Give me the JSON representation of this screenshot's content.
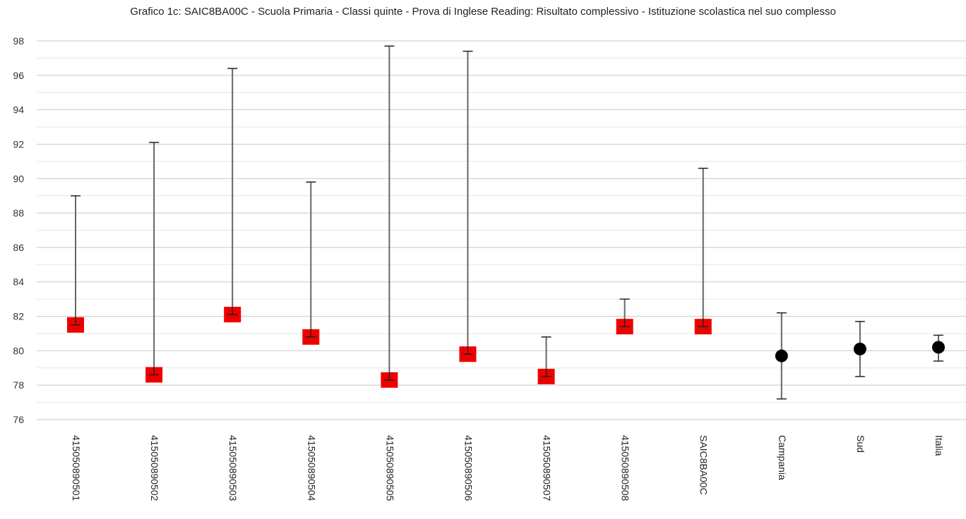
{
  "chart_data": {
    "type": "scatter",
    "title": "Grafico 1c: SAIC8BA00C - Scuola Primaria - Classi quinte - Prova di Inglese Reading: Risultato complessivo - Istituzione scolastica nel suo complesso",
    "xlabel": "",
    "ylabel": "",
    "ylim": [
      76,
      98
    ],
    "yticks": [
      76,
      78,
      80,
      82,
      84,
      86,
      88,
      90,
      92,
      94,
      96,
      98
    ],
    "grid": true,
    "colors": {
      "school_marker": "#ee0000",
      "reference_marker": "#000000",
      "error_bar": "#666666"
    },
    "points": [
      {
        "label": "415050890501",
        "value": 81.5,
        "lower": 81.5,
        "upper": 89.0,
        "marker": "square"
      },
      {
        "label": "415050890502",
        "value": 78.6,
        "lower": 78.6,
        "upper": 92.1,
        "marker": "square"
      },
      {
        "label": "415050890503",
        "value": 82.1,
        "lower": 82.1,
        "upper": 96.4,
        "marker": "square"
      },
      {
        "label": "415050890504",
        "value": 80.8,
        "lower": 80.8,
        "upper": 89.8,
        "marker": "square"
      },
      {
        "label": "415050890505",
        "value": 78.3,
        "lower": 78.3,
        "upper": 97.7,
        "marker": "square"
      },
      {
        "label": "415050890506",
        "value": 79.8,
        "lower": 79.8,
        "upper": 97.4,
        "marker": "square"
      },
      {
        "label": "415050890507",
        "value": 78.5,
        "lower": 78.5,
        "upper": 80.8,
        "marker": "square"
      },
      {
        "label": "415050890508",
        "value": 81.4,
        "lower": 81.4,
        "upper": 83.0,
        "marker": "square"
      },
      {
        "label": "SAIC8BA00C",
        "value": 81.4,
        "lower": 81.4,
        "upper": 90.6,
        "marker": "square"
      },
      {
        "label": "Campania",
        "value": 79.7,
        "lower": 77.2,
        "upper": 82.2,
        "marker": "circle"
      },
      {
        "label": "Sud",
        "value": 80.1,
        "lower": 78.5,
        "upper": 81.7,
        "marker": "circle"
      },
      {
        "label": "Italia",
        "value": 80.2,
        "lower": 79.4,
        "upper": 80.9,
        "marker": "circle"
      }
    ]
  }
}
